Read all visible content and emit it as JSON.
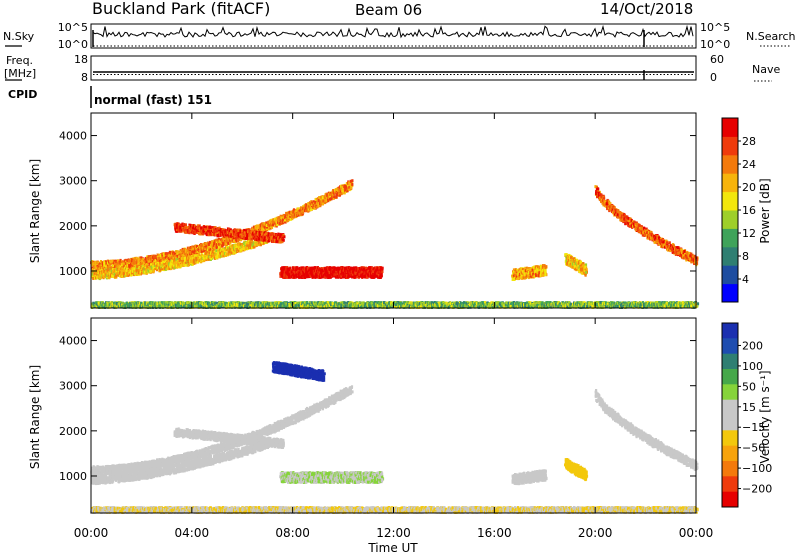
{
  "header": {
    "station": "Buckland Park (fitACF)",
    "beam": "Beam 06",
    "date": "14/Oct/2018"
  },
  "panels": {
    "nsky": {
      "left_label": "N.Sky",
      "left_ticks": [
        "10^5",
        "10^0"
      ],
      "right_label": "N.Search",
      "right_ticks": [
        "10^5",
        "10^0"
      ]
    },
    "freq": {
      "left_label": "Freq.",
      "left_unit": "[MHz]",
      "left_ticks": [
        "18",
        "8"
      ],
      "right_label": "Nave",
      "right_ticks": [
        "60",
        "0"
      ]
    },
    "cpid": {
      "label": "CPID",
      "mode": "normal (fast) 151"
    }
  },
  "chart_data": [
    {
      "type": "heatmap",
      "title": "",
      "xlabel": "Time UT",
      "ylabel": "Slant Range [km]",
      "x_ticks": [
        "00:00",
        "04:00",
        "08:00",
        "12:00",
        "16:00",
        "20:00",
        "00:00"
      ],
      "xlim_hours": [
        0,
        24
      ],
      "y_ticks": [
        1000,
        2000,
        3000,
        4000
      ],
      "ylim": [
        180,
        4500
      ],
      "grid": false,
      "colorbar": {
        "label": "Power [dB]",
        "ticks": [
          "4",
          "8",
          "12",
          "16",
          "20",
          "24",
          "28"
        ],
        "range": [
          0,
          30
        ],
        "colors": [
          "#0000ff",
          "#1e4da0",
          "#2f7f72",
          "#3fa35a",
          "#9ecf2a",
          "#f3e70c",
          "#f7b40c",
          "#f47a0c",
          "#ef3b0c",
          "#e60000"
        ]
      },
      "features": [
        {
          "name": "arc-1",
          "t_start": 0.0,
          "t_end": 10.3,
          "range_start": 1150,
          "range_end": 2950,
          "curve": 1.8,
          "value": 22
        },
        {
          "name": "arc-2",
          "t_start": 0.0,
          "t_end": 7.0,
          "range_start": 950,
          "range_end": 1750,
          "curve": 1.6,
          "value": 19
        },
        {
          "name": "spike-arc",
          "t_start": 3.3,
          "t_end": 7.6,
          "range_start": 2000,
          "range_end": 1750,
          "curve": 1.0,
          "value": 26
        },
        {
          "name": "central-blob",
          "t_start": 7.5,
          "t_end": 11.5,
          "range_start": 1000,
          "range_end": 1000,
          "curve": 1.0,
          "value": 29
        },
        {
          "name": "small-blob-1",
          "t_start": 16.7,
          "t_end": 18.0,
          "range_start": 950,
          "range_end": 1050,
          "curve": 1.0,
          "value": 20
        },
        {
          "name": "small-blob-2",
          "t_start": 18.8,
          "t_end": 19.6,
          "range_start": 1300,
          "range_end": 1050,
          "curve": 1.0,
          "value": 19
        },
        {
          "name": "evening-arc",
          "t_start": 20.0,
          "t_end": 24.0,
          "range_start": 2850,
          "range_end": 1250,
          "curve": 0.7,
          "value": 24
        },
        {
          "name": "ground-band",
          "t_start": 0.0,
          "t_end": 24.0,
          "range_start": 280,
          "range_end": 280,
          "curve": 1.0,
          "value": 12
        }
      ]
    },
    {
      "type": "heatmap",
      "title": "",
      "xlabel": "Time UT",
      "ylabel": "Slant Range [km]",
      "x_ticks": [
        "00:00",
        "04:00",
        "08:00",
        "12:00",
        "16:00",
        "20:00",
        "00:00"
      ],
      "xlim_hours": [
        0,
        24
      ],
      "y_ticks": [
        1000,
        2000,
        3000,
        4000
      ],
      "ylim": [
        180,
        4500
      ],
      "grid": false,
      "colorbar": {
        "label": "Velocity [m s⁻¹]",
        "ticks": [
          "200",
          "100",
          "50",
          "15",
          "−15",
          "−50",
          "−100",
          "−200"
        ],
        "range": [
          -250,
          250
        ],
        "colors": [
          "#1a2fb0",
          "#1e4db0",
          "#2f7f72",
          "#46a84a",
          "#86d43a",
          "#c8c8c8",
          "#c8c8c8",
          "#f3c80c",
          "#f7a30c",
          "#f47a0c",
          "#ef3b0c",
          "#e60000"
        ]
      },
      "features": [
        {
          "name": "arc-1",
          "t_start": 0.0,
          "t_end": 10.3,
          "range_start": 1150,
          "range_end": 2950,
          "curve": 1.8,
          "value": 0
        },
        {
          "name": "arc-2",
          "t_start": 0.0,
          "t_end": 7.0,
          "range_start": 950,
          "range_end": 1750,
          "curve": 1.6,
          "value": -5
        },
        {
          "name": "spike-arc",
          "t_start": 3.3,
          "t_end": 7.6,
          "range_start": 2000,
          "range_end": 1750,
          "curve": 1.0,
          "value": -30
        },
        {
          "name": "central-blob",
          "t_start": 7.5,
          "t_end": 11.5,
          "range_start": 1000,
          "range_end": 1000,
          "curve": 1.0,
          "value": 40
        },
        {
          "name": "high-blue-echo",
          "t_start": 7.2,
          "t_end": 9.2,
          "range_start": 3450,
          "range_end": 3250,
          "curve": 1.0,
          "value": 220
        },
        {
          "name": "small-blob-1",
          "t_start": 16.7,
          "t_end": 18.0,
          "range_start": 950,
          "range_end": 1050,
          "curve": 1.0,
          "value": 0
        },
        {
          "name": "small-blob-2",
          "t_start": 18.8,
          "t_end": 19.6,
          "range_start": 1300,
          "range_end": 1050,
          "curve": 1.0,
          "value": -60
        },
        {
          "name": "evening-arc",
          "t_start": 20.0,
          "t_end": 24.0,
          "range_start": 2850,
          "range_end": 1250,
          "curve": 0.7,
          "value": 0
        },
        {
          "name": "ground-band",
          "t_start": 0.0,
          "t_end": 24.0,
          "range_start": 280,
          "range_end": 280,
          "curve": 1.0,
          "value": -40
        }
      ]
    }
  ]
}
